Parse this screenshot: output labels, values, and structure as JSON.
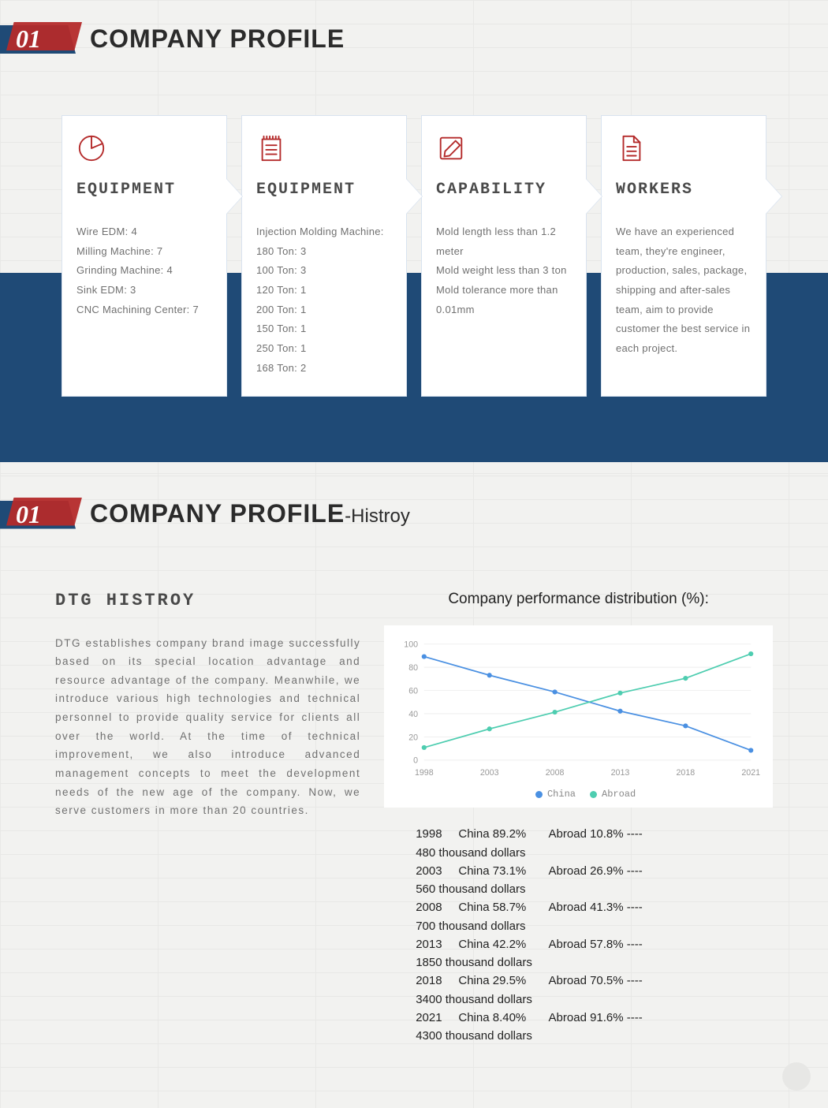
{
  "section1": {
    "number": "01",
    "title": "COMPANY PROFILE",
    "cards": [
      {
        "icon": "pie",
        "heading": "EQUIPMENT",
        "lines": [
          "Wire EDM: 4",
          "Milling Machine: 7",
          "Grinding Machine: 4",
          "Sink EDM: 3",
          "CNC Machining Center: 7"
        ]
      },
      {
        "icon": "notepad",
        "heading": "EQUIPMENT",
        "lines": [
          "Injection Molding Machine:",
          "180 Ton: 3",
          "100 Ton: 3",
          "120 Ton: 1",
          "200 Ton: 1",
          "150 Ton: 1",
          "250 Ton: 1",
          "168 Ton: 2"
        ]
      },
      {
        "icon": "pencil-square",
        "heading": "CAPABILITY",
        "lines": [
          "Mold length less than 1.2 meter",
          "Mold weight less than 3 ton",
          "Mold tolerance more than 0.01mm"
        ]
      },
      {
        "icon": "doc-lines",
        "heading": "WORKERS",
        "lines": [
          "We have an experienced team, they're engineer, production, sales, package, shipping and after-sales team, aim to provide customer the best service in each project."
        ]
      }
    ]
  },
  "section2": {
    "number": "01",
    "title": "COMPANY PROFILE",
    "subtitle": "-Histroy",
    "history_heading": "DTG HISTROY",
    "history_body": "DTG establishes company brand image successfully based on its special location advantage and resource advantage of the company. Meanwhile, we introduce various high technologies and technical personnel to provide quality service for clients all over the world. At the time of technical improvement, we also introduce advanced management concepts to meet the development needs of the new age of the company. Now, we serve customers in more than 20 countries.",
    "chart": {
      "type": "line",
      "title": "Company performance distribution (%):",
      "x_categories": [
        "1998",
        "2003",
        "2008",
        "2013",
        "2018",
        "2021"
      ],
      "ylim": [
        0,
        100
      ],
      "ytick_step": 20,
      "series": [
        {
          "name": "China",
          "color": "#4a90e2",
          "values": [
            89.2,
            73.1,
            58.7,
            42.2,
            29.5,
            8.4
          ]
        },
        {
          "name": "Abroad",
          "color": "#4ecdb0",
          "values": [
            10.8,
            26.9,
            41.3,
            57.8,
            70.5,
            91.6
          ]
        }
      ],
      "grid_color": "#eeeeee",
      "axis_color": "#dddddd",
      "label_color": "#999999",
      "label_fontsize": 11,
      "marker_radius": 3.2
    },
    "data_rows": [
      {
        "year": "1998",
        "china": "China 89.2%",
        "abroad": "Abroad 10.8% ----",
        "amount": "480 thousand dollars"
      },
      {
        "year": "2003",
        "china": "China 73.1%",
        "abroad": "Abroad 26.9% ----",
        "amount": "560 thousand dollars"
      },
      {
        "year": "2008",
        "china": "China 58.7%",
        "abroad": "Abroad 41.3% ----",
        "amount": "700 thousand dollars"
      },
      {
        "year": "2013",
        "china": "China 42.2%",
        "abroad": "Abroad 57.8% ----",
        "amount": "1850 thousand dollars"
      },
      {
        "year": "2018",
        "china": "China 29.5%",
        "abroad": "Abroad 70.5% ----",
        "amount": "3400 thousand dollars"
      },
      {
        "year": "2021",
        "china": "China 8.40%",
        "abroad": "Abroad 91.6% ----",
        "amount": "4300 thousand dollars"
      }
    ]
  },
  "colors": {
    "brand_blue": "#1f4a76",
    "brand_red": "#b42a2a",
    "text": "#707070"
  }
}
